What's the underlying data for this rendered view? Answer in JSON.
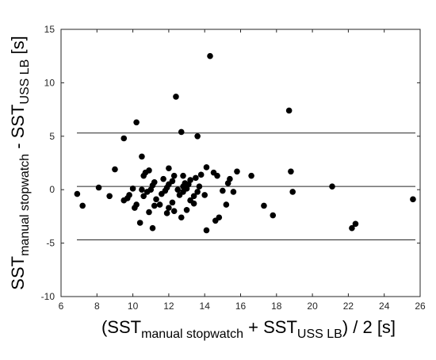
{
  "chart_data": {
    "type": "scatter",
    "xlabel": {
      "parts": [
        {
          "text": "(SST",
          "sub": false
        },
        {
          "text": "manual stopwatch",
          "sub": true
        },
        {
          "text": " + SST",
          "sub": false
        },
        {
          "text": "USS LB",
          "sub": true
        },
        {
          "text": ") / 2 [s]",
          "sub": false
        }
      ]
    },
    "ylabel": {
      "parts": [
        {
          "text": "SST",
          "sub": false
        },
        {
          "text": "manual stopwatch",
          "sub": true
        },
        {
          "text": " - SST",
          "sub": false
        },
        {
          "text": "USS LB",
          "sub": true
        },
        {
          "text": " [s]",
          "sub": false
        }
      ]
    },
    "xlim": [
      6,
      26
    ],
    "ylim": [
      -10,
      15
    ],
    "xticks": [
      "6",
      "8",
      "10",
      "12",
      "14",
      "16",
      "18",
      "20",
      "22",
      "24",
      "26"
    ],
    "yticks": [
      "-10",
      "-5",
      "0",
      "5",
      "10",
      "15"
    ],
    "grid": false,
    "reference_lines": [
      5.3,
      0.3,
      -4.7
    ],
    "points": [
      [
        6.9,
        -0.4
      ],
      [
        7.2,
        -1.5
      ],
      [
        8.1,
        0.2
      ],
      [
        8.7,
        -0.6
      ],
      [
        9.0,
        1.9
      ],
      [
        9.5,
        4.8
      ],
      [
        9.5,
        -1.0
      ],
      [
        9.7,
        -0.8
      ],
      [
        9.8,
        -0.5
      ],
      [
        10.0,
        0.1
      ],
      [
        10.1,
        -1.7
      ],
      [
        10.2,
        6.3
      ],
      [
        10.2,
        -1.4
      ],
      [
        10.4,
        -3.1
      ],
      [
        10.5,
        3.1
      ],
      [
        10.5,
        0.0
      ],
      [
        10.6,
        1.3
      ],
      [
        10.6,
        -0.6
      ],
      [
        10.7,
        1.6
      ],
      [
        10.8,
        -0.2
      ],
      [
        10.9,
        1.8
      ],
      [
        10.9,
        -2.1
      ],
      [
        11.0,
        0.0
      ],
      [
        11.1,
        0.4
      ],
      [
        11.1,
        -3.6
      ],
      [
        11.2,
        0.7
      ],
      [
        11.2,
        -1.5
      ],
      [
        11.3,
        -0.9
      ],
      [
        11.5,
        -1.4
      ],
      [
        11.6,
        -0.4
      ],
      [
        11.7,
        1.0
      ],
      [
        11.8,
        -0.1
      ],
      [
        11.9,
        0.2
      ],
      [
        11.9,
        -2.2
      ],
      [
        12.0,
        2.0
      ],
      [
        12.0,
        0.5
      ],
      [
        12.0,
        -1.7
      ],
      [
        12.2,
        0.8
      ],
      [
        12.2,
        -1.2
      ],
      [
        12.3,
        -2.0
      ],
      [
        12.3,
        1.3
      ],
      [
        12.4,
        8.7
      ],
      [
        12.5,
        0.0
      ],
      [
        12.6,
        -0.5
      ],
      [
        12.7,
        5.4
      ],
      [
        12.7,
        -2.6
      ],
      [
        12.8,
        0.3
      ],
      [
        12.8,
        -0.2
      ],
      [
        12.8,
        1.3
      ],
      [
        12.9,
        0.6
      ],
      [
        13.0,
        0.1
      ],
      [
        13.0,
        -1.9
      ],
      [
        13.1,
        0.5
      ],
      [
        13.2,
        -1.0
      ],
      [
        13.2,
        0.9
      ],
      [
        13.4,
        -0.6
      ],
      [
        13.4,
        -1.3
      ],
      [
        13.5,
        1.1
      ],
      [
        13.6,
        5.0
      ],
      [
        13.6,
        -0.2
      ],
      [
        13.7,
        0.3
      ],
      [
        13.8,
        1.4
      ],
      [
        14.0,
        -0.5
      ],
      [
        14.1,
        2.1
      ],
      [
        14.1,
        -3.8
      ],
      [
        14.3,
        12.5
      ],
      [
        14.5,
        1.6
      ],
      [
        14.6,
        -2.9
      ],
      [
        14.7,
        1.3
      ],
      [
        14.8,
        -2.6
      ],
      [
        15.0,
        -0.1
      ],
      [
        15.2,
        -1.4
      ],
      [
        15.3,
        0.6
      ],
      [
        15.4,
        1.0
      ],
      [
        15.6,
        -0.2
      ],
      [
        15.8,
        1.7
      ],
      [
        16.6,
        1.3
      ],
      [
        17.3,
        -1.5
      ],
      [
        17.8,
        -2.4
      ],
      [
        18.7,
        7.4
      ],
      [
        18.8,
        1.7
      ],
      [
        18.9,
        -0.2
      ],
      [
        21.1,
        0.3
      ],
      [
        22.2,
        -3.6
      ],
      [
        22.4,
        -3.2
      ],
      [
        25.6,
        -0.9
      ]
    ]
  }
}
